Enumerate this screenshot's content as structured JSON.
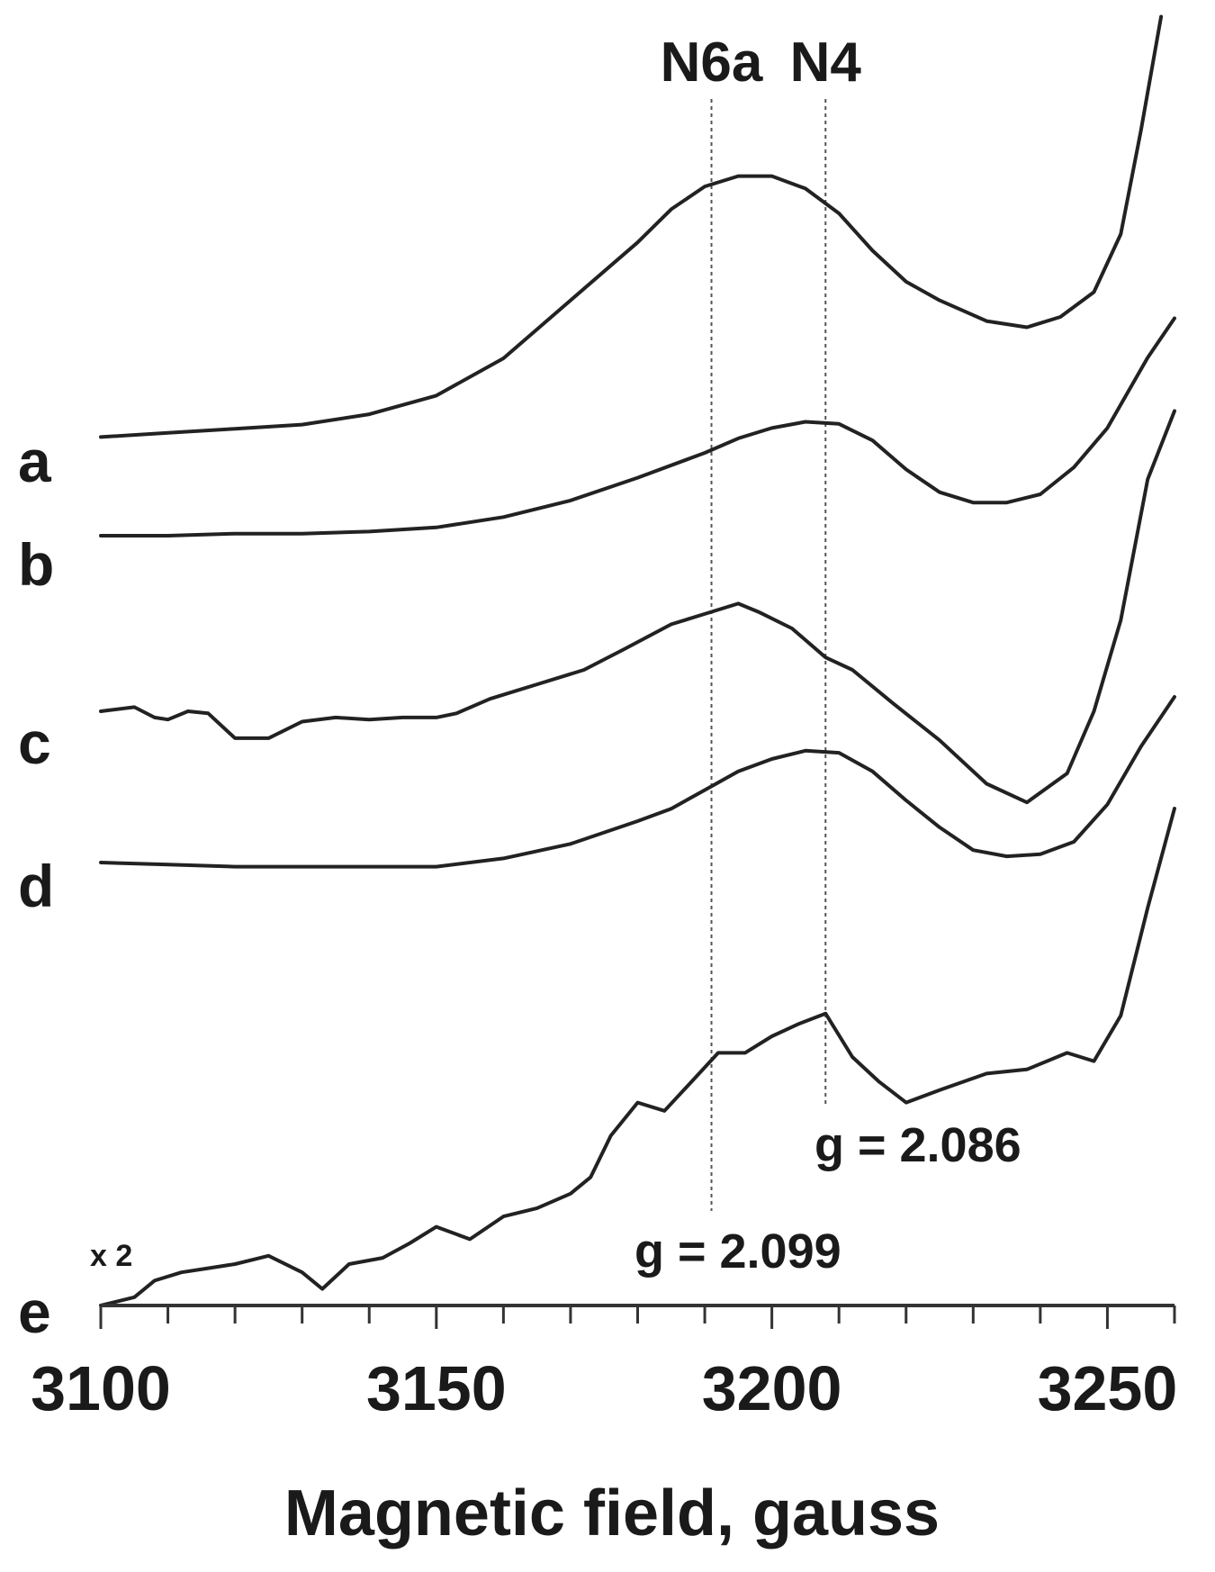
{
  "chart_data": {
    "type": "line",
    "xlabel": "Magnetic field, gauss",
    "xlim": [
      3100,
      3260
    ],
    "xticks": [
      3100,
      3150,
      3200,
      3250
    ],
    "minor_tick_step": 10,
    "y_axis_shown": false,
    "grid": false,
    "reference_lines": [
      {
        "label": "N6a",
        "x": 3191,
        "g_label": "g = 2.099"
      },
      {
        "label": "N4",
        "x": 3208,
        "g_label": "g = 2.086"
      }
    ],
    "scale_annotation": "x 2",
    "series": [
      {
        "name": "a",
        "points": [
          [
            3100,
            0.02
          ],
          [
            3110,
            0.04
          ],
          [
            3120,
            0.06
          ],
          [
            3130,
            0.08
          ],
          [
            3140,
            0.13
          ],
          [
            3150,
            0.22
          ],
          [
            3160,
            0.4
          ],
          [
            3170,
            0.68
          ],
          [
            3180,
            0.96
          ],
          [
            3185,
            1.12
          ],
          [
            3190,
            1.23
          ],
          [
            3195,
            1.28
          ],
          [
            3200,
            1.28
          ],
          [
            3205,
            1.22
          ],
          [
            3210,
            1.1
          ],
          [
            3215,
            0.92
          ],
          [
            3220,
            0.77
          ],
          [
            3225,
            0.68
          ],
          [
            3232,
            0.58
          ],
          [
            3238,
            0.55
          ],
          [
            3243,
            0.6
          ],
          [
            3248,
            0.72
          ],
          [
            3252,
            1.0
          ],
          [
            3255,
            1.5
          ],
          [
            3258,
            2.05
          ]
        ]
      },
      {
        "name": "b",
        "points": [
          [
            3100,
            0.0
          ],
          [
            3110,
            0.0
          ],
          [
            3120,
            0.01
          ],
          [
            3130,
            0.01
          ],
          [
            3140,
            0.02
          ],
          [
            3150,
            0.04
          ],
          [
            3160,
            0.09
          ],
          [
            3170,
            0.17
          ],
          [
            3180,
            0.28
          ],
          [
            3190,
            0.4
          ],
          [
            3195,
            0.47
          ],
          [
            3200,
            0.52
          ],
          [
            3205,
            0.55
          ],
          [
            3210,
            0.54
          ],
          [
            3215,
            0.46
          ],
          [
            3220,
            0.32
          ],
          [
            3225,
            0.21
          ],
          [
            3230,
            0.16
          ],
          [
            3235,
            0.16
          ],
          [
            3240,
            0.2
          ],
          [
            3245,
            0.33
          ],
          [
            3250,
            0.52
          ],
          [
            3256,
            0.86
          ],
          [
            3260,
            1.05
          ]
        ]
      },
      {
        "name": "c",
        "points": [
          [
            3100,
            0.0
          ],
          [
            3105,
            0.02
          ],
          [
            3108,
            -0.03
          ],
          [
            3110,
            -0.04
          ],
          [
            3113,
            0.0
          ],
          [
            3116,
            -0.01
          ],
          [
            3120,
            -0.13
          ],
          [
            3125,
            -0.13
          ],
          [
            3130,
            -0.05
          ],
          [
            3135,
            -0.03
          ],
          [
            3140,
            -0.04
          ],
          [
            3145,
            -0.03
          ],
          [
            3150,
            -0.03
          ],
          [
            3153,
            -0.01
          ],
          [
            3158,
            0.06
          ],
          [
            3165,
            0.13
          ],
          [
            3172,
            0.2
          ],
          [
            3178,
            0.3
          ],
          [
            3185,
            0.42
          ],
          [
            3190,
            0.47
          ],
          [
            3195,
            0.52
          ],
          [
            3198,
            0.48
          ],
          [
            3203,
            0.4
          ],
          [
            3208,
            0.26
          ],
          [
            3212,
            0.2
          ],
          [
            3218,
            0.04
          ],
          [
            3225,
            -0.14
          ],
          [
            3232,
            -0.35
          ],
          [
            3238,
            -0.44
          ],
          [
            3244,
            -0.3
          ],
          [
            3248,
            0.0
          ],
          [
            3252,
            0.44
          ],
          [
            3256,
            1.12
          ],
          [
            3260,
            1.45
          ]
        ]
      },
      {
        "name": "d",
        "points": [
          [
            3100,
            0.0
          ],
          [
            3110,
            -0.01
          ],
          [
            3120,
            -0.02
          ],
          [
            3130,
            -0.02
          ],
          [
            3140,
            -0.02
          ],
          [
            3150,
            -0.02
          ],
          [
            3160,
            0.02
          ],
          [
            3170,
            0.09
          ],
          [
            3180,
            0.2
          ],
          [
            3185,
            0.26
          ],
          [
            3190,
            0.35
          ],
          [
            3195,
            0.44
          ],
          [
            3200,
            0.5
          ],
          [
            3205,
            0.54
          ],
          [
            3210,
            0.53
          ],
          [
            3215,
            0.44
          ],
          [
            3220,
            0.3
          ],
          [
            3225,
            0.17
          ],
          [
            3230,
            0.06
          ],
          [
            3235,
            0.03
          ],
          [
            3240,
            0.04
          ],
          [
            3245,
            0.1
          ],
          [
            3250,
            0.28
          ],
          [
            3255,
            0.56
          ],
          [
            3260,
            0.8
          ]
        ]
      },
      {
        "name": "e",
        "points": [
          [
            3100,
            0.0
          ],
          [
            3105,
            0.04
          ],
          [
            3108,
            0.12
          ],
          [
            3112,
            0.16
          ],
          [
            3116,
            0.18
          ],
          [
            3120,
            0.2
          ],
          [
            3125,
            0.24
          ],
          [
            3130,
            0.16
          ],
          [
            3133,
            0.08
          ],
          [
            3137,
            0.2
          ],
          [
            3142,
            0.23
          ],
          [
            3146,
            0.3
          ],
          [
            3150,
            0.38
          ],
          [
            3155,
            0.32
          ],
          [
            3160,
            0.43
          ],
          [
            3165,
            0.47
          ],
          [
            3170,
            0.54
          ],
          [
            3173,
            0.62
          ],
          [
            3176,
            0.82
          ],
          [
            3180,
            0.98
          ],
          [
            3184,
            0.94
          ],
          [
            3188,
            1.08
          ],
          [
            3192,
            1.22
          ],
          [
            3196,
            1.22
          ],
          [
            3200,
            1.3
          ],
          [
            3204,
            1.36
          ],
          [
            3208,
            1.41
          ],
          [
            3212,
            1.2
          ],
          [
            3216,
            1.08
          ],
          [
            3220,
            0.98
          ],
          [
            3225,
            1.04
          ],
          [
            3232,
            1.12
          ],
          [
            3238,
            1.14
          ],
          [
            3244,
            1.22
          ],
          [
            3248,
            1.18
          ],
          [
            3252,
            1.4
          ],
          [
            3256,
            1.92
          ],
          [
            3260,
            2.4
          ]
        ]
      }
    ]
  }
}
